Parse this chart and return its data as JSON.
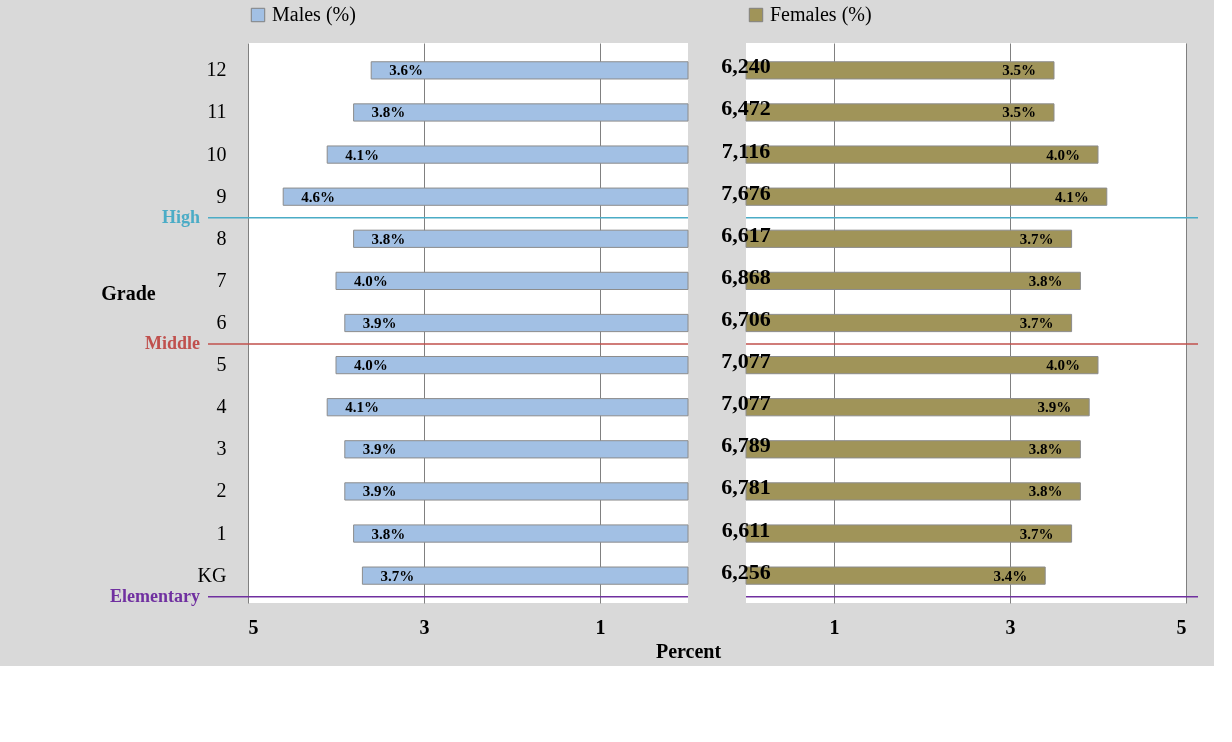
{
  "chart_data": [
    {
      "type": "bar",
      "orientation": "horizontal",
      "ylabel": "Grade",
      "xlabel": "Percent",
      "categories": [
        "12",
        "11",
        "10",
        "9",
        "8",
        "7",
        "6",
        "5",
        "4",
        "3",
        "2",
        "1",
        "KG"
      ],
      "series": [
        {
          "name": "Males (%)",
          "color": "#a2c0e4",
          "values": [
            3.6,
            3.8,
            4.1,
            4.6,
            3.8,
            4.0,
            3.9,
            4.0,
            4.1,
            3.9,
            3.9,
            3.8,
            3.7
          ],
          "value_labels": [
            "3.6%",
            "3.8%",
            "4.1%",
            "4.6%",
            "3.8%",
            "4.0%",
            "3.9%",
            "4.0%",
            "4.1%",
            "3.9%",
            "3.9%",
            "3.8%",
            "3.7%"
          ]
        }
      ],
      "xlim": [
        5,
        0
      ],
      "xticks": [
        5,
        3,
        1
      ],
      "grid": "x",
      "legend": "top",
      "ref_lines": [
        {
          "axis": "y",
          "value": "9",
          "label": "High",
          "color": "#4bacc6"
        },
        {
          "axis": "y",
          "value": "6",
          "label": "Middle",
          "color": "#c0504d"
        },
        {
          "axis": "y",
          "value": "KG",
          "label": "Elementary",
          "color": "#7030a0"
        }
      ]
    },
    {
      "type": "bar",
      "orientation": "horizontal",
      "tick_labels": "x",
      "categories": [
        "12",
        "11",
        "10",
        "9",
        "8",
        "7",
        "6",
        "5",
        "4",
        "3",
        "2",
        "1",
        "KG"
      ],
      "series": [
        {
          "name": "Females (%)",
          "color": "#a09459",
          "values": [
            3.5,
            3.5,
            4.0,
            4.1,
            3.7,
            3.8,
            3.7,
            4.0,
            3.9,
            3.8,
            3.8,
            3.7,
            3.4
          ],
          "value_labels": [
            "3.5%",
            "3.5%",
            "4.0%",
            "4.1%",
            "3.7%",
            "3.8%",
            "3.7%",
            "4.0%",
            "3.9%",
            "3.8%",
            "3.8%",
            "3.7%",
            "3.4%"
          ]
        }
      ],
      "xlim": [
        0,
        5
      ],
      "xticks": [
        1,
        3,
        5
      ],
      "grid": "x",
      "legend": "top",
      "annotations": [
        {
          "text": "6,240",
          "y": "12"
        },
        {
          "text": "6,472",
          "y": "11"
        },
        {
          "text": "7,116",
          "y": "10"
        },
        {
          "text": "7,676",
          "y": "9"
        },
        {
          "text": "6,617",
          "y": "8"
        },
        {
          "text": "6,868",
          "y": "7"
        },
        {
          "text": "6,706",
          "y": "6"
        },
        {
          "text": "7,077",
          "y": "5"
        },
        {
          "text": "7,077",
          "y": "4"
        },
        {
          "text": "6,789",
          "y": "3"
        },
        {
          "text": "6,781",
          "y": "2"
        },
        {
          "text": "6,611",
          "y": "1"
        },
        {
          "text": "6,256",
          "y": "KG"
        }
      ],
      "ref_lines": [
        {
          "axis": "y",
          "value": "9",
          "color": "#4bacc6"
        },
        {
          "axis": "y",
          "value": "6",
          "color": "#c0504d"
        },
        {
          "axis": "y",
          "value": "KG",
          "color": "#7030a0"
        }
      ]
    }
  ]
}
